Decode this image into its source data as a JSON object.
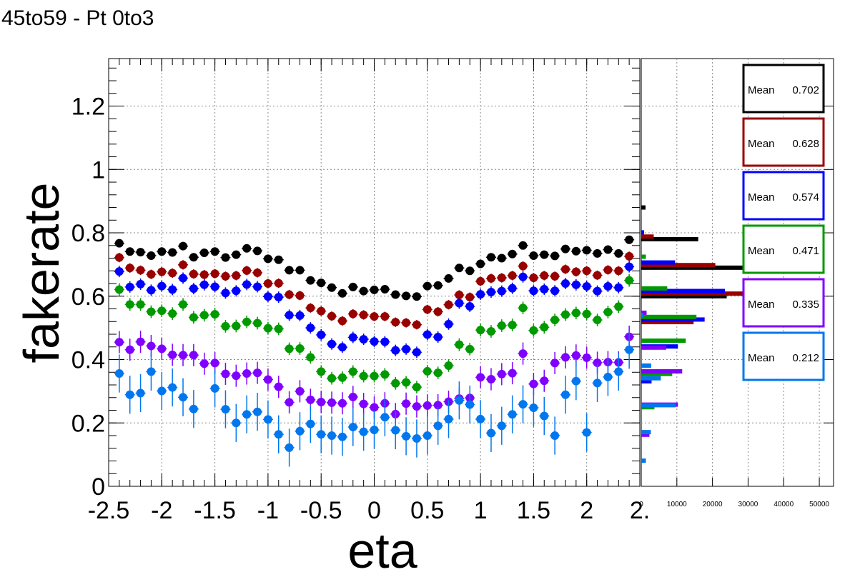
{
  "title": "45to59 - Pt 0to3",
  "chart_data": [
    {
      "type": "scatter",
      "xlabel": "eta",
      "ylabel": "fakerate",
      "xlim": [
        -2.5,
        2.5
      ],
      "ylim": [
        0,
        1.35
      ],
      "grid": true,
      "x_ticks": [
        "-2.5",
        "-2",
        "-1.5",
        "-1",
        "-0.5",
        "0",
        "0.5",
        "1",
        "1.5",
        "2",
        "2."
      ],
      "y_ticks": [
        "0",
        "0.2",
        "0.4",
        "0.6",
        "0.8",
        "1",
        "1.2"
      ],
      "x": [
        -2.4,
        -2.3,
        -2.2,
        -2.1,
        -2.0,
        -1.9,
        -1.8,
        -1.7,
        -1.6,
        -1.5,
        -1.4,
        -1.3,
        -1.2,
        -1.1,
        -1.0,
        -0.9,
        -0.8,
        -0.7,
        -0.6,
        -0.5,
        -0.4,
        -0.3,
        -0.2,
        -0.1,
        0.0,
        0.1,
        0.2,
        0.3,
        0.4,
        0.5,
        0.6,
        0.7,
        0.8,
        0.9,
        1.0,
        1.1,
        1.2,
        1.3,
        1.4,
        1.5,
        1.6,
        1.7,
        1.8,
        1.9,
        2.0,
        2.1,
        2.2,
        2.3,
        2.4
      ],
      "series": [
        {
          "color": "#000000",
          "err": 0.012,
          "values": [
            0.767,
            0.741,
            0.739,
            0.728,
            0.741,
            0.738,
            0.758,
            0.723,
            0.737,
            0.741,
            0.722,
            0.731,
            0.751,
            0.743,
            0.718,
            0.715,
            0.682,
            0.682,
            0.65,
            0.642,
            0.627,
            0.609,
            0.629,
            0.616,
            0.62,
            0.622,
            0.605,
            0.601,
            0.599,
            0.632,
            0.634,
            0.656,
            0.689,
            0.68,
            0.702,
            0.723,
            0.72,
            0.733,
            0.76,
            0.728,
            0.731,
            0.727,
            0.749,
            0.742,
            0.745,
            0.735,
            0.747,
            0.735,
            0.778
          ]
        },
        {
          "color": "#990000",
          "err": 0.015,
          "values": [
            0.722,
            0.689,
            0.682,
            0.669,
            0.677,
            0.673,
            0.699,
            0.67,
            0.668,
            0.671,
            0.663,
            0.665,
            0.681,
            0.674,
            0.64,
            0.641,
            0.605,
            0.602,
            0.563,
            0.553,
            0.537,
            0.522,
            0.544,
            0.541,
            0.536,
            0.536,
            0.518,
            0.516,
            0.51,
            0.558,
            0.551,
            0.573,
            0.604,
            0.597,
            0.647,
            0.656,
            0.658,
            0.665,
            0.695,
            0.658,
            0.665,
            0.663,
            0.685,
            0.677,
            0.68,
            0.666,
            0.683,
            0.68,
            0.726
          ]
        },
        {
          "color": "#0000ff",
          "err": 0.018,
          "values": [
            0.678,
            0.629,
            0.638,
            0.619,
            0.632,
            0.621,
            0.657,
            0.624,
            0.636,
            0.63,
            0.61,
            0.617,
            0.637,
            0.63,
            0.599,
            0.597,
            0.54,
            0.539,
            0.5,
            0.478,
            0.449,
            0.439,
            0.47,
            0.464,
            0.457,
            0.456,
            0.429,
            0.433,
            0.423,
            0.479,
            0.471,
            0.512,
            0.578,
            0.568,
            0.606,
            0.613,
            0.616,
            0.625,
            0.661,
            0.617,
            0.622,
            0.617,
            0.64,
            0.636,
            0.631,
            0.616,
            0.631,
            0.627,
            0.693
          ]
        },
        {
          "color": "#009900",
          "err": 0.02,
          "values": [
            0.621,
            0.574,
            0.574,
            0.551,
            0.554,
            0.545,
            0.574,
            0.533,
            0.54,
            0.543,
            0.505,
            0.506,
            0.519,
            0.515,
            0.499,
            0.497,
            0.434,
            0.435,
            0.407,
            0.362,
            0.341,
            0.343,
            0.362,
            0.348,
            0.348,
            0.353,
            0.325,
            0.328,
            0.313,
            0.363,
            0.358,
            0.381,
            0.447,
            0.433,
            0.493,
            0.489,
            0.507,
            0.509,
            0.563,
            0.492,
            0.502,
            0.525,
            0.542,
            0.547,
            0.544,
            0.525,
            0.55,
            0.567,
            0.65
          ]
        },
        {
          "color": "#7f00ff",
          "err": 0.035,
          "values": [
            0.455,
            0.431,
            0.456,
            0.443,
            0.434,
            0.415,
            0.414,
            0.414,
            0.387,
            0.389,
            0.355,
            0.349,
            0.356,
            0.358,
            0.337,
            0.314,
            0.265,
            0.3,
            0.273,
            0.266,
            0.264,
            0.262,
            0.282,
            0.26,
            0.249,
            0.262,
            0.228,
            0.261,
            0.252,
            0.255,
            0.256,
            0.267,
            0.277,
            0.279,
            0.344,
            0.338,
            0.354,
            0.357,
            0.419,
            0.323,
            0.333,
            0.389,
            0.407,
            0.413,
            0.406,
            0.39,
            0.392,
            0.391,
            0.472
          ]
        },
        {
          "color": "#0077ee",
          "err": 0.06,
          "values": [
            0.356,
            0.289,
            0.294,
            0.362,
            0.301,
            0.312,
            0.281,
            0.244,
            null,
            0.309,
            0.243,
            0.2,
            0.227,
            0.235,
            0.211,
            0.164,
            0.122,
            0.174,
            0.197,
            0.164,
            0.16,
            0.156,
            0.187,
            0.172,
            0.178,
            0.218,
            0.177,
            0.158,
            0.151,
            0.16,
            0.191,
            0.212,
            0.271,
            0.258,
            0.212,
            0.168,
            0.191,
            0.227,
            0.259,
            0.248,
            0.222,
            0.16,
            0.289,
            0.332,
            0.17,
            0.326,
            0.345,
            0.362,
            0.431
          ]
        }
      ]
    },
    {
      "type": "bar",
      "orientation": "horizontal",
      "x_ticks": [
        "0",
        "10000",
        "20000",
        "30000",
        "40000",
        "50000"
      ],
      "xlim": [
        0,
        54000
      ],
      "ylim": [
        0,
        1.35
      ],
      "legend_placement": "right",
      "stat_label": "Mean",
      "series": [
        {
          "color": "#000000",
          "mean": "0.702",
          "bins": [
            [
              0.88,
              1200
            ],
            [
              0.78,
              16000
            ],
            [
              0.69,
              29500
            ],
            [
              0.6,
              24000
            ],
            [
              0.53,
              5800
            ]
          ]
        },
        {
          "color": "#990000",
          "mean": "0.628",
          "bins": [
            [
              0.79,
              3500
            ],
            [
              0.7,
              20800
            ],
            [
              0.61,
              30500
            ],
            [
              0.52,
              14700
            ],
            [
              0.44,
              4600
            ]
          ]
        },
        {
          "color": "#0000ff",
          "mean": "0.574",
          "bins": [
            [
              0.805,
              800
            ],
            [
              0.71,
              9500
            ],
            [
              0.62,
              23500
            ],
            [
              0.53,
              17800
            ],
            [
              0.445,
              10300
            ],
            [
              0.335,
              2900
            ]
          ]
        },
        {
          "color": "#009900",
          "mean": "0.471",
          "bins": [
            [
              0.73,
              1300
            ],
            [
              0.63,
              7300
            ],
            [
              0.54,
              15500
            ],
            [
              0.465,
              12500
            ],
            [
              0.36,
              8700
            ],
            [
              0.255,
              3700
            ]
          ]
        },
        {
          "color": "#7f00ff",
          "mean": "0.335",
          "bins": [
            [
              0.555,
              1500
            ],
            [
              0.445,
              7000
            ],
            [
              0.37,
              11500
            ],
            [
              0.265,
              10300
            ],
            [
              0.17,
              2300
            ]
          ]
        },
        {
          "color": "#0077ee",
          "mean": "0.212",
          "bins": [
            [
              0.55,
              600
            ],
            [
              0.39,
              2800
            ],
            [
              0.35,
              5500
            ],
            [
              0.265,
              9700
            ],
            [
              0.18,
              2700
            ],
            [
              0.09,
              1300
            ]
          ]
        }
      ]
    }
  ]
}
